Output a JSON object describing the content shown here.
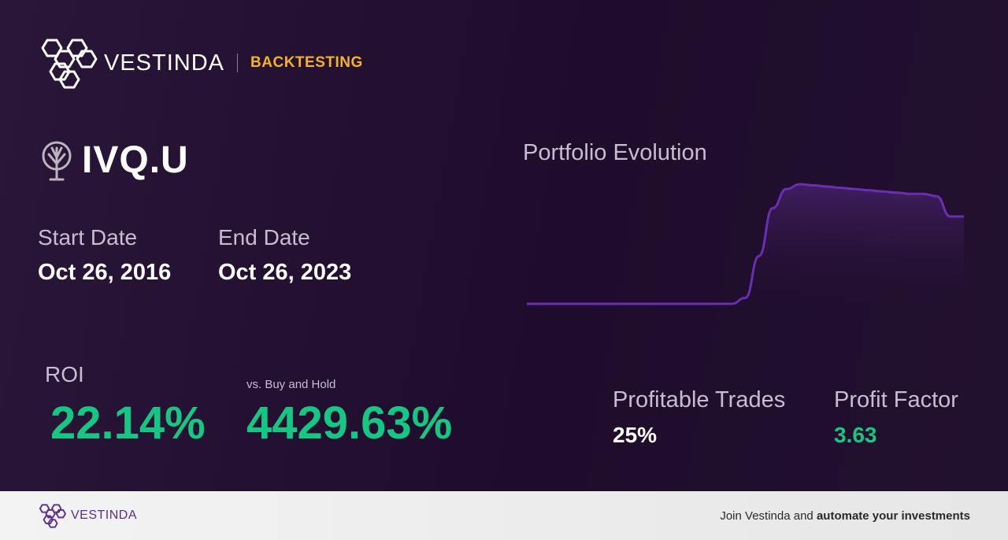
{
  "header": {
    "brand": "VESTINDA",
    "section": "BACKTESTING"
  },
  "ticker": {
    "symbol": "IVQ.U",
    "icon": "tree-icon"
  },
  "dates": {
    "start_label": "Start Date",
    "start_value": "Oct 26, 2016",
    "end_label": "End Date",
    "end_value": "Oct 26, 2023"
  },
  "roi": {
    "label": "ROI",
    "value": "22.14%"
  },
  "buy_hold": {
    "label": "vs. Buy and Hold",
    "value": "4429.63%"
  },
  "profitable_trades": {
    "label": "Profitable Trades",
    "value": "25%"
  },
  "profit_factor": {
    "label": "Profit Factor",
    "value": "3.63"
  },
  "chart": {
    "title": "Portfolio Evolution",
    "line_color": "#6a2fb0"
  },
  "chart_data": {
    "type": "line",
    "title": "Portfolio Evolution",
    "series": [
      {
        "values": [
          0,
          0,
          0,
          0,
          0,
          0,
          0,
          0,
          0,
          0,
          0,
          0,
          0,
          0,
          0,
          0,
          0.05,
          0.4,
          0.8,
          0.96,
          1,
          0.99,
          0.98,
          0.97,
          0.96,
          0.95,
          0.94,
          0.93,
          0.92,
          0.92,
          0.9,
          0.73,
          0.73
        ]
      }
    ],
    "grid": false
  },
  "footer": {
    "brand": "VESTINDA",
    "cta_prefix": "Join Vestinda and ",
    "cta_bold": "automate your investments"
  },
  "colors": {
    "accent": "#f5b321",
    "positive": "#16c784",
    "brand_purple": "#5b2d8e"
  }
}
